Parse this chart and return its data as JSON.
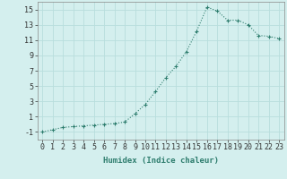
{
  "x": [
    0,
    1,
    2,
    3,
    4,
    5,
    6,
    7,
    8,
    9,
    10,
    11,
    12,
    13,
    14,
    15,
    16,
    17,
    18,
    19,
    20,
    21,
    22,
    23
  ],
  "y": [
    -1.0,
    -0.7,
    -0.4,
    -0.3,
    -0.2,
    -0.1,
    0.0,
    0.1,
    0.3,
    1.4,
    2.6,
    4.3,
    6.1,
    7.6,
    9.5,
    12.2,
    15.3,
    14.8,
    13.6,
    13.6,
    13.0,
    11.6,
    11.5,
    11.2
  ],
  "line_color": "#2e7d6e",
  "marker": "+",
  "marker_size": 3,
  "marker_linewidth": 0.8,
  "background_color": "#d4efee",
  "grid_color": "#b8dedd",
  "xlabel": "Humidex (Indice chaleur)",
  "xlim": [
    -0.5,
    23.5
  ],
  "ylim": [
    -2,
    16
  ],
  "yticks": [
    -1,
    1,
    3,
    5,
    7,
    9,
    11,
    13,
    15
  ],
  "xticks": [
    0,
    1,
    2,
    3,
    4,
    5,
    6,
    7,
    8,
    9,
    10,
    11,
    12,
    13,
    14,
    15,
    16,
    17,
    18,
    19,
    20,
    21,
    22,
    23
  ],
  "xlabel_fontsize": 6.5,
  "tick_fontsize": 6.0,
  "linewidth": 0.8
}
